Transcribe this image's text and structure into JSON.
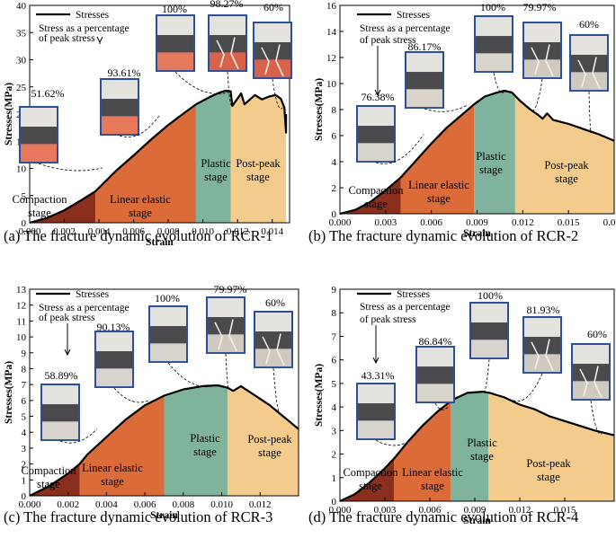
{
  "chart_data": [
    {
      "type": "area",
      "panel": "a",
      "caption": "(a)  The fracture dynamic evolution of RCR-1",
      "xlabel": "Strain",
      "ylabel": "Stresses(MPa)",
      "xlim": [
        0.0,
        0.015
      ],
      "ylim": [
        0,
        40
      ],
      "x_ticks": [
        0.0,
        0.002,
        0.004,
        0.006,
        0.008,
        0.01,
        0.012,
        0.014
      ],
      "x_tick_labels": [
        "0.000",
        "0.002",
        "0.004",
        "0.006",
        "0.008",
        "0.010",
        "0.012",
        "0.014"
      ],
      "y_ticks": [
        0,
        5,
        10,
        15,
        20,
        25,
        30,
        35,
        40
      ],
      "y_tick_labels": [
        "0",
        "5",
        "10",
        "15",
        "20",
        "25",
        "30",
        "35",
        "40"
      ],
      "legend": {
        "label": "Stresses",
        "position": "top-left"
      },
      "legend_note": [
        "Stress as a percentage",
        "of peak stress"
      ],
      "series": {
        "x": [
          0.0,
          0.001,
          0.002,
          0.003,
          0.0038,
          0.005,
          0.006,
          0.007,
          0.008,
          0.009,
          0.0096,
          0.0105,
          0.011,
          0.0113,
          0.0116,
          0.0117,
          0.0122,
          0.0124,
          0.013,
          0.0134,
          0.0138,
          0.0142,
          0.0145,
          0.0147,
          0.0148,
          0.0148
        ],
        "y": [
          0.0,
          0.9,
          2.3,
          4.2,
          5.8,
          9.6,
          12.4,
          15.3,
          18.0,
          20.4,
          21.8,
          23.3,
          24.0,
          24.3,
          24.2,
          21.5,
          23.8,
          21.8,
          23.5,
          22.7,
          23.2,
          23.5,
          22.8,
          21.2,
          16.6,
          20.0
        ]
      },
      "stages": [
        {
          "label": "Compaction stage",
          "lines": [
            "Compaction",
            "stage"
          ],
          "x0": 0.0,
          "x1": 0.0038,
          "color": "#8a2e1d"
        },
        {
          "label": "Linear elastic stage",
          "lines": [
            "Linear elastic",
            "stage"
          ],
          "x0": 0.0038,
          "x1": 0.0096,
          "color": "#db6b38"
        },
        {
          "label": "Plastic stage",
          "lines": [
            "Plastic",
            "stage"
          ],
          "x0": 0.0096,
          "x1": 0.0116,
          "color": "#7fb39b"
        },
        {
          "label": "Post-peak stage",
          "lines": [
            "Post-peak",
            "stage"
          ],
          "x0": 0.0116,
          "x1": 0.0148,
          "color": "#f3cc8d"
        }
      ],
      "specimens": [
        {
          "percent": "51.62%",
          "x": 0.0042,
          "y": 10.1,
          "state": "intact",
          "bottom": "#e6785c"
        },
        {
          "percent": "93.61%",
          "x": 0.0075,
          "y": 19.8,
          "state": "intact",
          "bottom": "#e6785c"
        },
        {
          "percent": "100%",
          "x": 0.0115,
          "y": 24.0,
          "state": "intact",
          "bottom": "#e6785c"
        },
        {
          "percent": "98.27%",
          "x": 0.0117,
          "y": 21.8,
          "state": "fractured",
          "bottom": "#d9624a"
        },
        {
          "percent": "60%",
          "x": 0.0146,
          "y": 21.2,
          "state": "fractured",
          "bottom": "#d9624a"
        }
      ]
    },
    {
      "type": "area",
      "panel": "b",
      "caption": "(b)  The fracture dynamic evolution of RCR-2",
      "xlabel": "Strain",
      "ylabel": "Stresses(MPa)",
      "xlim": [
        0.0,
        0.018
      ],
      "ylim": [
        0,
        16
      ],
      "x_ticks": [
        0.0,
        0.003,
        0.006,
        0.009,
        0.012,
        0.015,
        0.018
      ],
      "x_tick_labels": [
        "0.000",
        "0.003",
        "0.006",
        "0.009",
        "0.012",
        "0.015",
        "0.018"
      ],
      "y_ticks": [
        0,
        2,
        4,
        6,
        8,
        10,
        12,
        14,
        16
      ],
      "y_tick_labels": [
        "0",
        "2",
        "4",
        "6",
        "8",
        "10",
        "12",
        "14",
        "16"
      ],
      "legend": {
        "label": "Stresses",
        "position": "top-left"
      },
      "legend_note": [
        "Stress as a percentage",
        "of peak stress"
      ],
      "series": {
        "x": [
          0.0,
          0.001,
          0.002,
          0.003,
          0.004,
          0.005,
          0.006,
          0.007,
          0.008,
          0.0088,
          0.0095,
          0.0103,
          0.0108,
          0.0113,
          0.0118,
          0.0125,
          0.013,
          0.0133,
          0.0136,
          0.014,
          0.015,
          0.016,
          0.017,
          0.018
        ],
        "y": [
          0.0,
          0.3,
          0.9,
          1.8,
          2.8,
          4.1,
          5.4,
          6.6,
          7.6,
          8.4,
          9.0,
          9.3,
          9.45,
          9.3,
          8.7,
          8.0,
          7.6,
          7.3,
          7.7,
          7.2,
          6.9,
          6.5,
          6.1,
          5.6
        ]
      },
      "stages": [
        {
          "label": "Compaction stage",
          "lines": [
            "Compaction",
            "stage"
          ],
          "x0": 0.0,
          "x1": 0.004,
          "color": "#8a2e1d"
        },
        {
          "label": "Linear elastic stage",
          "lines": [
            "Linear elastic",
            "stage"
          ],
          "x0": 0.004,
          "x1": 0.0088,
          "color": "#db6b38"
        },
        {
          "label": "Plastic stage",
          "lines": [
            "Plastic",
            "stage"
          ],
          "x0": 0.0088,
          "x1": 0.0115,
          "color": "#7fb39b"
        },
        {
          "label": "Post-peak stage",
          "lines": [
            "Post-peak",
            "stage"
          ],
          "x0": 0.0115,
          "x1": 0.018,
          "color": "#f3cc8d"
        }
      ],
      "specimens": [
        {
          "percent": "76.38%",
          "x": 0.0055,
          "y": 6.1,
          "state": "intact",
          "bottom": "#d8d4cc"
        },
        {
          "percent": "86.17%",
          "x": 0.0083,
          "y": 8.3,
          "state": "intact",
          "bottom": "#d8d4cc"
        },
        {
          "percent": "100%",
          "x": 0.0108,
          "y": 9.4,
          "state": "intact",
          "bottom": "#d8d4cc"
        },
        {
          "percent": "79.97%",
          "x": 0.0125,
          "y": 8.0,
          "state": "fractured",
          "bottom": "#cfc9bf"
        },
        {
          "percent": "60%",
          "x": 0.0165,
          "y": 6.3,
          "state": "fractured",
          "bottom": "#cfc9bf"
        }
      ]
    },
    {
      "type": "area",
      "panel": "c",
      "caption": "(c)  The fracture dynamic evolution of RCR-3",
      "xlabel": "Strain",
      "ylabel": "Stresses(MPa)",
      "xlim": [
        0.0,
        0.014
      ],
      "ylim": [
        0,
        13
      ],
      "x_ticks": [
        0.0,
        0.002,
        0.004,
        0.006,
        0.008,
        0.01,
        0.012
      ],
      "x_tick_labels": [
        "0.000",
        "0.002",
        "0.004",
        "0.006",
        "0.008",
        "0.010",
        "0.012"
      ],
      "y_ticks": [
        0,
        1,
        2,
        3,
        4,
        5,
        6,
        7,
        8,
        9,
        10,
        11,
        12,
        13
      ],
      "y_tick_labels": [
        "0",
        "1",
        "2",
        "3",
        "4",
        "5",
        "6",
        "7",
        "8",
        "9",
        "10",
        "11",
        "12",
        "13"
      ],
      "legend": {
        "label": "Stresses",
        "position": "top-left"
      },
      "legend_note": [
        "Stress as a percentage",
        "of peak stress"
      ],
      "series": {
        "x": [
          0.0,
          0.001,
          0.002,
          0.0026,
          0.003,
          0.004,
          0.005,
          0.006,
          0.007,
          0.008,
          0.009,
          0.0098,
          0.0103,
          0.0106,
          0.011,
          0.0115,
          0.012,
          0.0125,
          0.013,
          0.0135,
          0.014
        ],
        "y": [
          0.0,
          0.6,
          1.4,
          2.0,
          2.6,
          3.7,
          4.8,
          5.7,
          6.3,
          6.7,
          6.9,
          6.95,
          6.8,
          6.6,
          6.9,
          6.5,
          6.1,
          5.7,
          5.2,
          4.7,
          4.2
        ]
      },
      "stages": [
        {
          "label": "Compaction stage",
          "lines": [
            "Compaction",
            "stage"
          ],
          "x0": 0.0,
          "x1": 0.0026,
          "color": "#8a2e1d"
        },
        {
          "label": "Linear elastic stage",
          "lines": [
            "Linear elastic",
            "stage"
          ],
          "x0": 0.0026,
          "x1": 0.007,
          "color": "#db6b38"
        },
        {
          "label": "Plastic stage",
          "lines": [
            "Plastic",
            "stage"
          ],
          "x0": 0.007,
          "x1": 0.0103,
          "color": "#7fb39b"
        },
        {
          "label": "Post-peak stage",
          "lines": [
            "Post-peak",
            "stage"
          ],
          "x0": 0.0103,
          "x1": 0.014,
          "color": "#f3cc8d"
        }
      ],
      "specimens": [
        {
          "percent": "58.89%",
          "x": 0.0035,
          "y": 4.2,
          "state": "intact",
          "bottom": "#d8d4cc"
        },
        {
          "percent": "90.13%",
          "x": 0.0062,
          "y": 6.0,
          "state": "intact",
          "bottom": "#d8d4cc"
        },
        {
          "percent": "100%",
          "x": 0.0097,
          "y": 6.95,
          "state": "intact",
          "bottom": "#d8d4cc"
        },
        {
          "percent": "79.97%",
          "x": 0.0104,
          "y": 6.8,
          "state": "fractured",
          "bottom": "#cfc9bf"
        },
        {
          "percent": "60%",
          "x": 0.0131,
          "y": 5.2,
          "state": "fractured",
          "bottom": "#cfc9bf"
        }
      ]
    },
    {
      "type": "area",
      "panel": "d",
      "caption": "(d)  The fracture dynamic evolution of RCR-4",
      "xlabel": "Strain",
      "ylabel": "Stresses(MPa)",
      "xlim": [
        0.0,
        0.0183
      ],
      "ylim": [
        0,
        9
      ],
      "x_ticks": [
        0.0,
        0.003,
        0.006,
        0.009,
        0.012,
        0.015
      ],
      "x_tick_labels": [
        "0.000",
        "0.003",
        "0.006",
        "0.009",
        "0.012",
        "0.015"
      ],
      "y_ticks": [
        0,
        1,
        2,
        3,
        4,
        5,
        6,
        7,
        8,
        9
      ],
      "y_tick_labels": [
        "0",
        "1",
        "2",
        "3",
        "4",
        "5",
        "6",
        "7",
        "8",
        "9"
      ],
      "legend": {
        "label": "Stresses",
        "position": "top-left"
      },
      "legend_note": [
        "Stress as a percentage",
        "of peak stress"
      ],
      "series": {
        "x": [
          0.0,
          0.001,
          0.002,
          0.003,
          0.0036,
          0.0045,
          0.0055,
          0.0065,
          0.0075,
          0.0085,
          0.0095,
          0.01,
          0.0105,
          0.011,
          0.012,
          0.013,
          0.014,
          0.015,
          0.016,
          0.017,
          0.0183
        ],
        "y": [
          0.0,
          0.3,
          0.8,
          1.4,
          1.8,
          2.5,
          3.2,
          3.8,
          4.3,
          4.6,
          4.65,
          4.6,
          4.5,
          4.4,
          4.1,
          3.9,
          3.6,
          3.4,
          3.2,
          3.0,
          2.8
        ]
      },
      "stages": [
        {
          "label": "Compaction stage",
          "lines": [
            "Compaction",
            "stage"
          ],
          "x0": 0.0,
          "x1": 0.0036,
          "color": "#8a2e1d"
        },
        {
          "label": "Linear elastic stage",
          "lines": [
            "Linear elastic",
            "stage"
          ],
          "x0": 0.0036,
          "x1": 0.0074,
          "color": "#db6b38"
        },
        {
          "label": "Plastic stage",
          "lines": [
            "Plastic",
            "stage"
          ],
          "x0": 0.0074,
          "x1": 0.0099,
          "color": "#7fb39b"
        },
        {
          "label": "Post-peak stage",
          "lines": [
            "Post-peak",
            "stage"
          ],
          "x0": 0.0099,
          "x1": 0.0183,
          "color": "#f3cc8d"
        }
      ],
      "specimens": [
        {
          "percent": "43.31%",
          "x": 0.0045,
          "y": 2.5,
          "state": "intact",
          "bottom": "#d8d4cc"
        },
        {
          "percent": "86.84%",
          "x": 0.0072,
          "y": 4.0,
          "state": "intact",
          "bottom": "#d8d4cc"
        },
        {
          "percent": "100%",
          "x": 0.0095,
          "y": 4.65,
          "state": "intact",
          "bottom": "#d8d4cc"
        },
        {
          "percent": "81.93%",
          "x": 0.0115,
          "y": 4.3,
          "state": "fractured",
          "bottom": "#cfc9bf"
        },
        {
          "percent": "60%",
          "x": 0.0175,
          "y": 2.9,
          "state": "fractured",
          "bottom": "#cfc9bf"
        }
      ]
    }
  ]
}
